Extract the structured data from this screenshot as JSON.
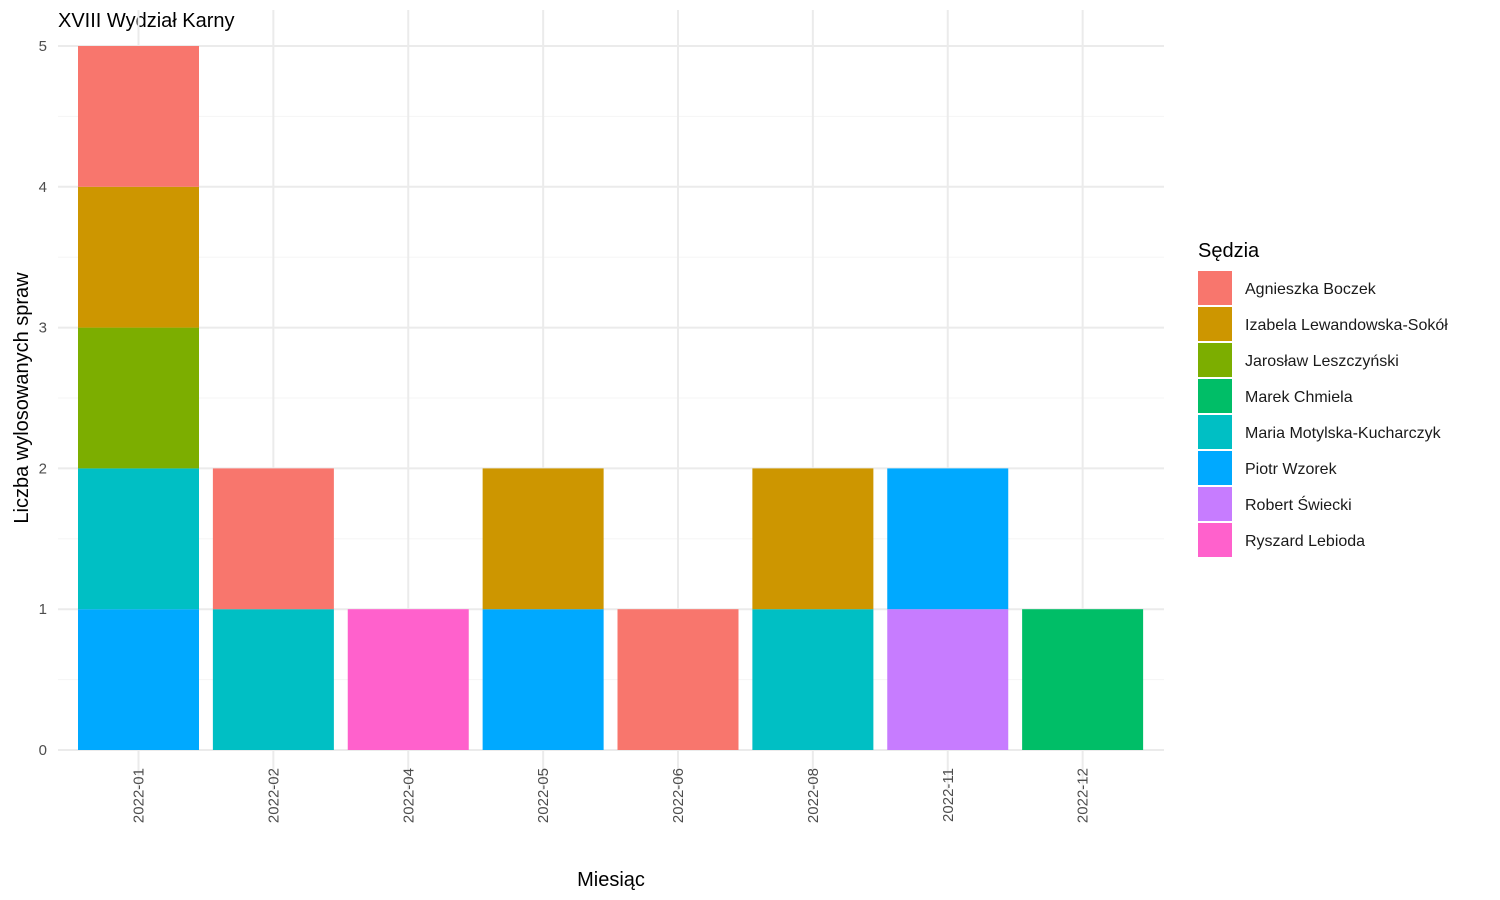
{
  "chart_data": {
    "type": "bar",
    "stacked": true,
    "title": "XVIII Wydział Karny",
    "xlabel": "Miesiąc",
    "ylabel": "Liczba wylosowanych spraw",
    "ylim": [
      0,
      5
    ],
    "y_ticks": [
      "0",
      "1",
      "2",
      "3",
      "4",
      "5"
    ],
    "grid": true,
    "legend": {
      "title": "Sędzia",
      "position": "right"
    },
    "categories": [
      "2022-01",
      "2022-02",
      "2022-04",
      "2022-05",
      "2022-06",
      "2022-08",
      "2022-11",
      "2022-12"
    ],
    "series": [
      {
        "name": "Agnieszka Boczek",
        "color": "#F8766D",
        "values": [
          1,
          1,
          0,
          0,
          1,
          0,
          0,
          0
        ]
      },
      {
        "name": "Izabela Lewandowska-Sokół",
        "color": "#CD9600",
        "values": [
          1,
          0,
          0,
          1,
          0,
          1,
          0,
          0
        ]
      },
      {
        "name": "Jarosław Leszczyński",
        "color": "#7CAE00",
        "values": [
          1,
          0,
          0,
          0,
          0,
          0,
          0,
          0
        ]
      },
      {
        "name": "Marek Chmiela",
        "color": "#00BE67",
        "values": [
          0,
          0,
          0,
          0,
          0,
          0,
          0,
          1
        ]
      },
      {
        "name": "Maria Motylska-Kucharczyk",
        "color": "#00BFC4",
        "values": [
          1,
          1,
          0,
          0,
          0,
          1,
          0,
          0
        ]
      },
      {
        "name": "Piotr Wzorek",
        "color": "#00A9FF",
        "values": [
          1,
          0,
          0,
          1,
          0,
          0,
          1,
          0
        ]
      },
      {
        "name": "Robert Świecki",
        "color": "#C77CFF",
        "values": [
          0,
          0,
          0,
          0,
          0,
          0,
          1,
          0
        ]
      },
      {
        "name": "Ryszard Lebioda",
        "color": "#FF61CC",
        "values": [
          0,
          0,
          1,
          0,
          0,
          0,
          0,
          0
        ]
      }
    ]
  }
}
